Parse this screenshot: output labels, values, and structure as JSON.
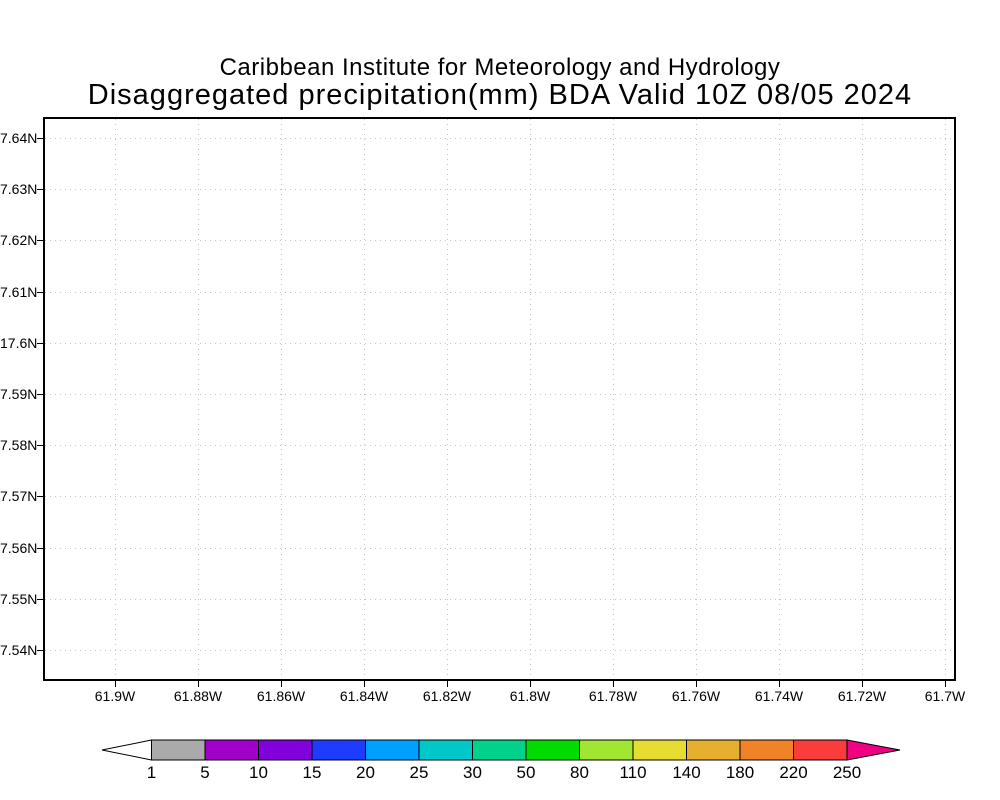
{
  "colors": {
    "background": "#ffffff",
    "frame": "#000000",
    "grid": "#c4c4c4",
    "text": "#000000"
  },
  "header": {
    "institute_title": "Caribbean Institute for Meteorology and Hydrology",
    "plot_title": "Disaggregated precipitation(mm) BDA Valid 10Z 08/05 2024"
  },
  "chart_data": {
    "type": "heatmap",
    "title": "Caribbean Institute for Meteorology and Hydrology",
    "subtitle": "Disaggregated precipitation(mm) BDA Valid 10Z 08/05 2024",
    "variable": "Disaggregated precipitation (mm)",
    "region_code": "BDA",
    "valid_time": "10Z 08/05 2024",
    "grid_style": "dotted",
    "values": [],
    "x_axis": {
      "tick_labels": [
        "61.9W",
        "61.88W",
        "61.86W",
        "61.84W",
        "61.82W",
        "61.8W",
        "61.78W",
        "61.76W",
        "61.74W",
        "61.72W",
        "61.7W"
      ]
    },
    "y_axis": {
      "tick_labels": [
        "7.64N",
        "7.63N",
        "7.62N",
        "7.61N",
        "17.6N",
        "7.59N",
        "7.58N",
        "7.57N",
        "7.56N",
        "7.55N",
        "7.54N"
      ]
    },
    "colorbar": {
      "boundary_labels": [
        "1",
        "5",
        "10",
        "15",
        "20",
        "25",
        "30",
        "50",
        "80",
        "110",
        "140",
        "180",
        "220",
        "250"
      ],
      "segment_colors": [
        "#aaaaaa",
        "#a000c8",
        "#8200dc",
        "#1e3cff",
        "#00a0ff",
        "#00c8c8",
        "#00d28c",
        "#00dc00",
        "#a0e632",
        "#e6dc32",
        "#e6af2d",
        "#f08228",
        "#fa3c3c"
      ],
      "underflow_arrow_color": "#ffffff",
      "overflow_arrow_color": "#f00082",
      "outline_color": "#000000"
    }
  }
}
